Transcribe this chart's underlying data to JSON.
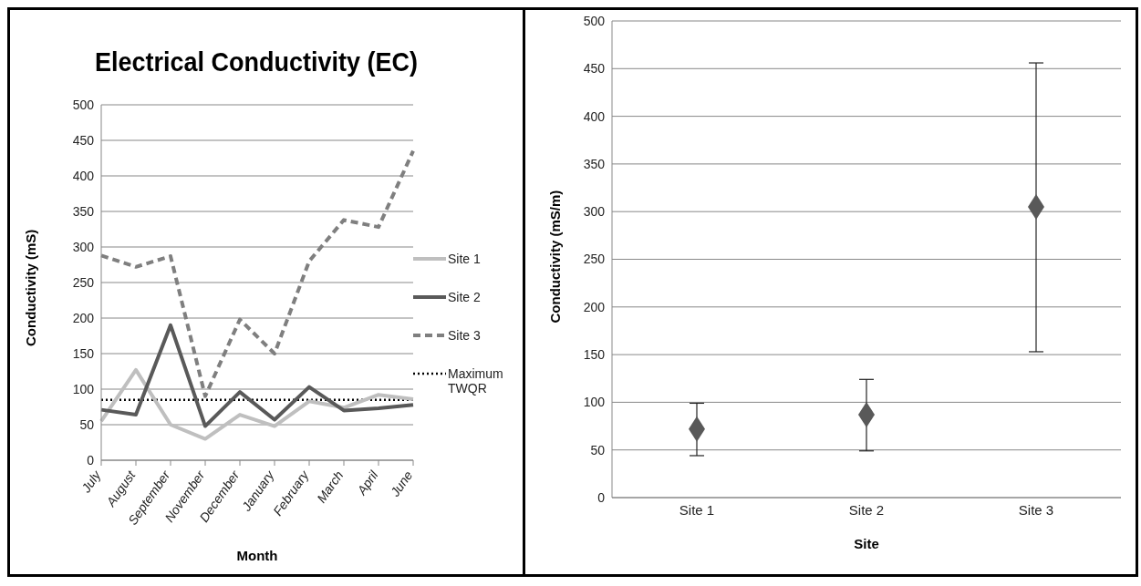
{
  "chart_data": [
    {
      "type": "line",
      "title": "Electrical Conductivity (EC)",
      "xlabel": "Month",
      "ylabel": "Conductivity (mS)",
      "categories": [
        "July",
        "August",
        "September",
        "November",
        "December",
        "January",
        "February",
        "March",
        "April",
        "June"
      ],
      "series": [
        {
          "name": "Site 1",
          "color": "#bfbfbf",
          "values": [
            55,
            127,
            50,
            30,
            64,
            48,
            83,
            74,
            92,
            86
          ]
        },
        {
          "name": "Site 2",
          "color": "#595959",
          "values": [
            71,
            64,
            190,
            48,
            96,
            57,
            103,
            70,
            73,
            78
          ]
        },
        {
          "name": "Site 3",
          "color": "#7f7f7f",
          "line_style": "dashed",
          "values": [
            288,
            272,
            287,
            90,
            198,
            150,
            280,
            338,
            328,
            435
          ]
        }
      ],
      "ref_lines": [
        {
          "axis": "y",
          "value": 85,
          "label": "Maximum TWQR",
          "color": "#000000",
          "line_style": "dotted"
        }
      ],
      "ylim": [
        0,
        500
      ],
      "yticks": [
        0,
        50,
        100,
        150,
        200,
        250,
        300,
        350,
        400,
        450,
        500
      ],
      "grid": "y",
      "legend": "right",
      "marker": "none",
      "line_style": "solid"
    },
    {
      "type": "scatter",
      "xlabel": "Site",
      "ylabel": "Conductivity (mS/m)",
      "categories": [
        "Site 1",
        "Site 2",
        "Site 3"
      ],
      "series": [
        {
          "color": "#595959",
          "values": [
            72,
            87,
            305
          ],
          "errors": [
            [
              44,
              99
            ],
            [
              49,
              124
            ],
            [
              153,
              456
            ]
          ]
        }
      ],
      "ylim": [
        0,
        500
      ],
      "yticks": [
        0,
        50,
        100,
        150,
        200,
        250,
        300,
        350,
        400,
        450,
        500
      ],
      "grid": "y",
      "legend": false,
      "marker": "diamond"
    }
  ]
}
